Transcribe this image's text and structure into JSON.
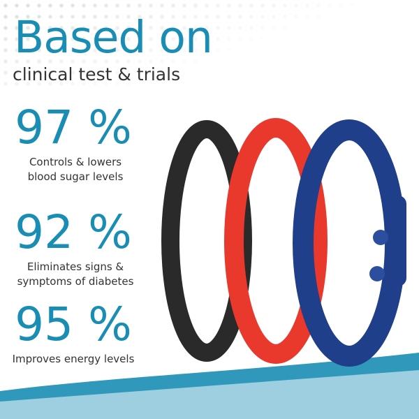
{
  "headline": {
    "title": "Based on",
    "subtitle": "clinical test & trials"
  },
  "stats": [
    {
      "value": "97 %",
      "description": "Controls & lowers blood sugar levels"
    },
    {
      "value": "92 %",
      "description": "Eliminates signs & symptoms of diabetes"
    },
    {
      "value": "95 %",
      "description": "Improves energy levels"
    }
  ],
  "colors": {
    "accent": "#1a8db4",
    "bracelet_black": "#2a2a2a",
    "bracelet_red": "#e8392c",
    "bracelet_blue": "#1f3f8a",
    "wave": "#1a8db4"
  }
}
